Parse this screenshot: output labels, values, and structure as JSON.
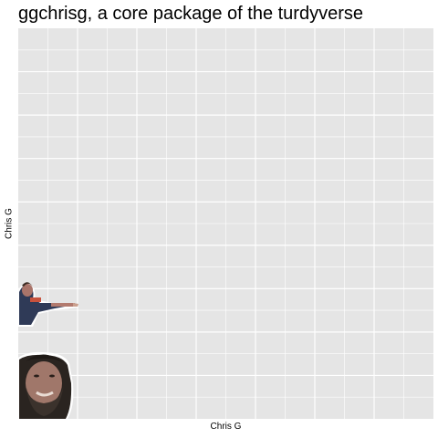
{
  "chart_data": {
    "type": "scatter",
    "title": "ggchrisg, a core package of the turdyverse",
    "xlabel": "Chris G",
    "ylabel": "Chris G",
    "grid": true,
    "panel_color": "#e5e5e5",
    "grid_color": "#ffffff",
    "x_major_count": 7,
    "y_major_count": 9,
    "points": [
      {
        "name": "pointing-man-photo",
        "x": 0,
        "y": 1
      },
      {
        "name": "bearded-man-photo",
        "x": 0,
        "y": 0
      }
    ]
  }
}
